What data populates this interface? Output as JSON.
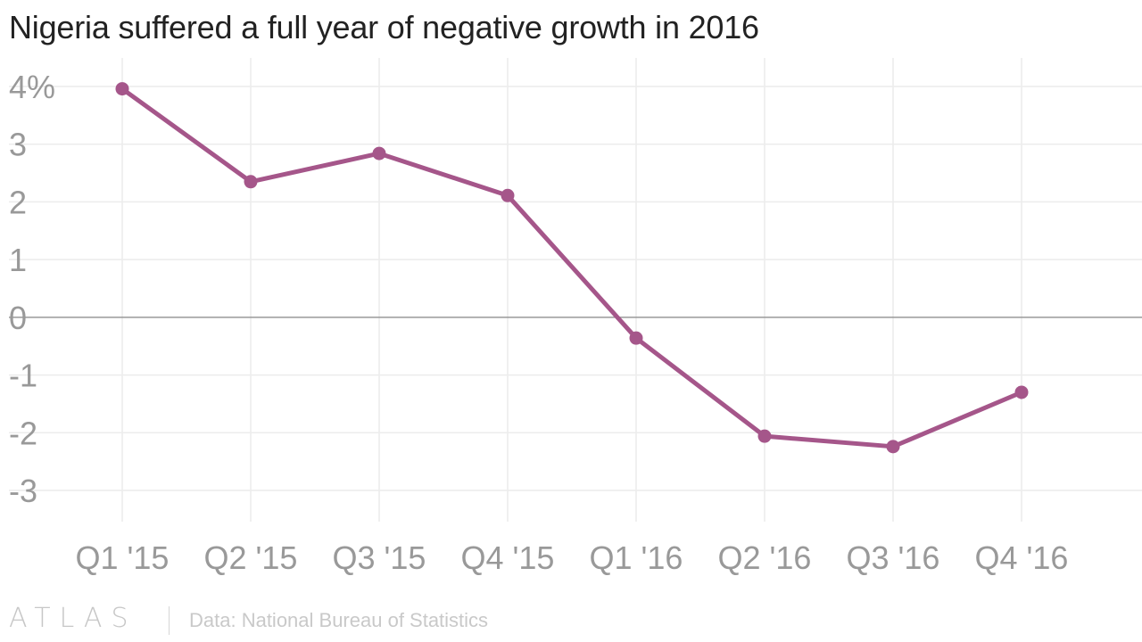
{
  "title": "Nigeria suffered a full year of negative growth in 2016",
  "footer": {
    "brand": "ATLAS",
    "source": "Data: National Bureau of Statistics"
  },
  "colors": {
    "line": "#a5568a",
    "grid": "#ececec",
    "zero_line": "#999999",
    "tick_text": "#999999"
  },
  "chart_data": {
    "type": "line",
    "title": "Nigeria suffered a full year of negative growth in 2016",
    "xlabel": "",
    "ylabel": "",
    "categories": [
      "Q1 '15",
      "Q2 '15",
      "Q3 '15",
      "Q4 '15",
      "Q1 '16",
      "Q2 '16",
      "Q3 '16",
      "Q4 '16"
    ],
    "series": [
      {
        "values": [
          3.96,
          2.35,
          2.84,
          2.11,
          -0.36,
          -2.06,
          -2.24,
          -1.3
        ]
      }
    ],
    "yticks": [
      4,
      3,
      2,
      1,
      0,
      -1,
      -2,
      -3
    ],
    "ytick_labels": [
      "4%",
      "3",
      "2",
      "1",
      "0",
      "-1",
      "-2",
      "-3"
    ],
    "ylim": [
      -3.5,
      4.5
    ],
    "grid": true,
    "markers": true
  }
}
